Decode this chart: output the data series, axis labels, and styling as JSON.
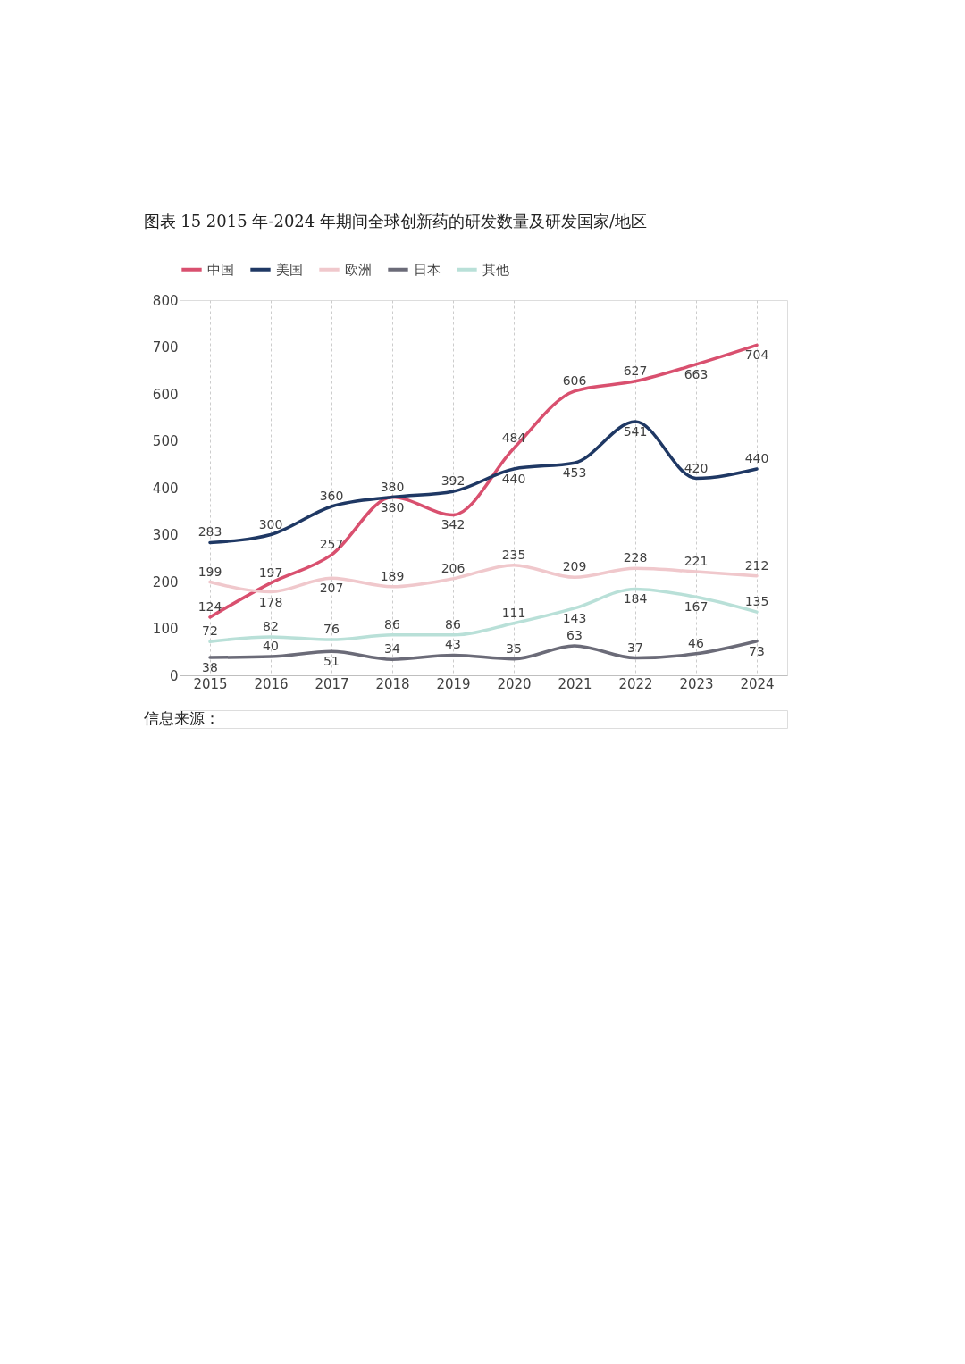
{
  "chart_data": {
    "type": "line",
    "title": "图表 15 2015 年-2024 年期间全球创新药的研发数量及研发国家/地区",
    "categories": [
      "2015",
      "2016",
      "2017",
      "2018",
      "2019",
      "2020",
      "2021",
      "2022",
      "2023",
      "2024"
    ],
    "series": [
      {
        "name": "中国",
        "color": "#d9506f",
        "values": [
          124,
          197,
          257,
          380,
          342,
          484,
          606,
          627,
          663,
          704
        ]
      },
      {
        "name": "美国",
        "color": "#1f3864",
        "values": [
          283,
          300,
          360,
          380,
          392,
          440,
          453,
          541,
          420,
          440
        ]
      },
      {
        "name": "欧洲",
        "color": "#f0c8cc",
        "values": [
          199,
          178,
          207,
          189,
          206,
          235,
          209,
          228,
          221,
          212
        ]
      },
      {
        "name": "日本",
        "color": "#6b6b78",
        "values": [
          38,
          40,
          51,
          34,
          43,
          35,
          63,
          37,
          46,
          73
        ]
      },
      {
        "name": "其他",
        "color": "#b9e0d8",
        "values": [
          72,
          82,
          76,
          86,
          86,
          111,
          143,
          184,
          167,
          135
        ]
      }
    ],
    "ylim": [
      0,
      800
    ],
    "yticks": [
      0,
      100,
      200,
      300,
      400,
      500,
      600,
      700,
      800
    ],
    "grid": "x",
    "legend": "top",
    "data_labels": true,
    "marker": "none",
    "line_style": "solid",
    "annotations": [
      "信息来源："
    ]
  }
}
